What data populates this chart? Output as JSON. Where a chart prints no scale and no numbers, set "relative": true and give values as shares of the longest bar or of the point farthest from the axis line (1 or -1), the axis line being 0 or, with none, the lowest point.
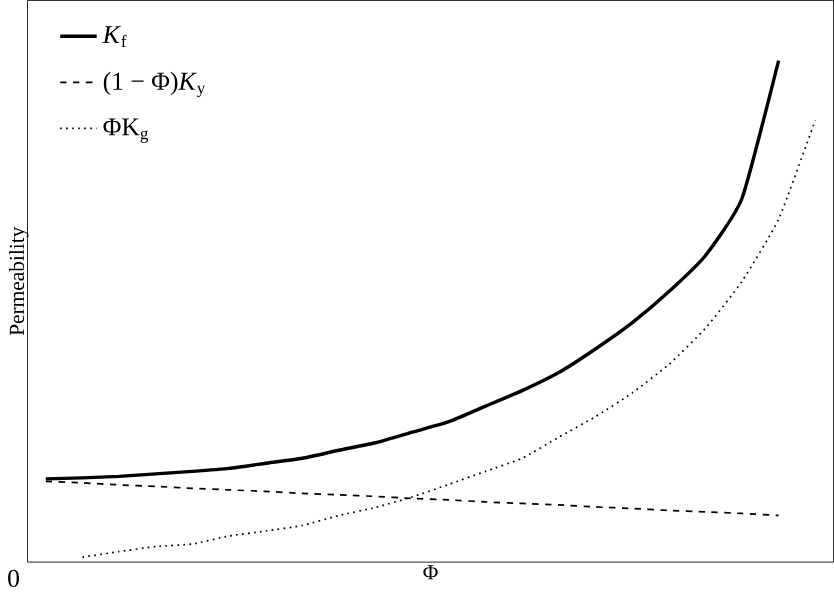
{
  "chart_data": {
    "type": "line",
    "relative": true,
    "xlabel": "Φ",
    "ylabel": "Permeability",
    "annotations": [
      "0"
    ],
    "legend": "top left",
    "categories": [
      null,
      null,
      null,
      null,
      null,
      null,
      null,
      null,
      null,
      null,
      null,
      null,
      null,
      null,
      null,
      null,
      null,
      null,
      null,
      null,
      null,
      null
    ],
    "series": [
      {
        "name": "*K*$_{f}$",
        "color": "#000000",
        "line_style": "solid",
        "values": [
          0.166,
          0.168,
          0.171,
          0.176,
          0.181,
          0.187,
          0.197,
          0.207,
          0.223,
          0.238,
          0.259,
          0.28,
          0.311,
          0.342,
          0.378,
          0.425,
          0.477,
          0.539,
          0.611,
          0.725,
          1,
          null
        ]
      },
      {
        "name": "(1 − Φ)*K*$_{y}$",
        "color": "#000000",
        "line_style": "dashed",
        "values": [
          0.161,
          0.158,
          0.154,
          0.151,
          0.147,
          0.144,
          0.141,
          0.137,
          0.134,
          0.131,
          0.127,
          0.124,
          0.12,
          0.117,
          0.114,
          0.11,
          0.107,
          0.103,
          0.1,
          0.097,
          0.093,
          null
        ]
      },
      {
        "name": "ΦK$_{g}$",
        "color": "#000000",
        "line_style": "dotted",
        "values": [
          null,
          0.01,
          0.021,
          0.031,
          0.036,
          0.052,
          0.062,
          0.073,
          0.093,
          0.109,
          0.13,
          0.155,
          0.181,
          0.207,
          0.249,
          0.29,
          0.337,
          0.394,
          0.466,
          0.56,
          0.684,
          0.881
        ]
      }
    ]
  }
}
